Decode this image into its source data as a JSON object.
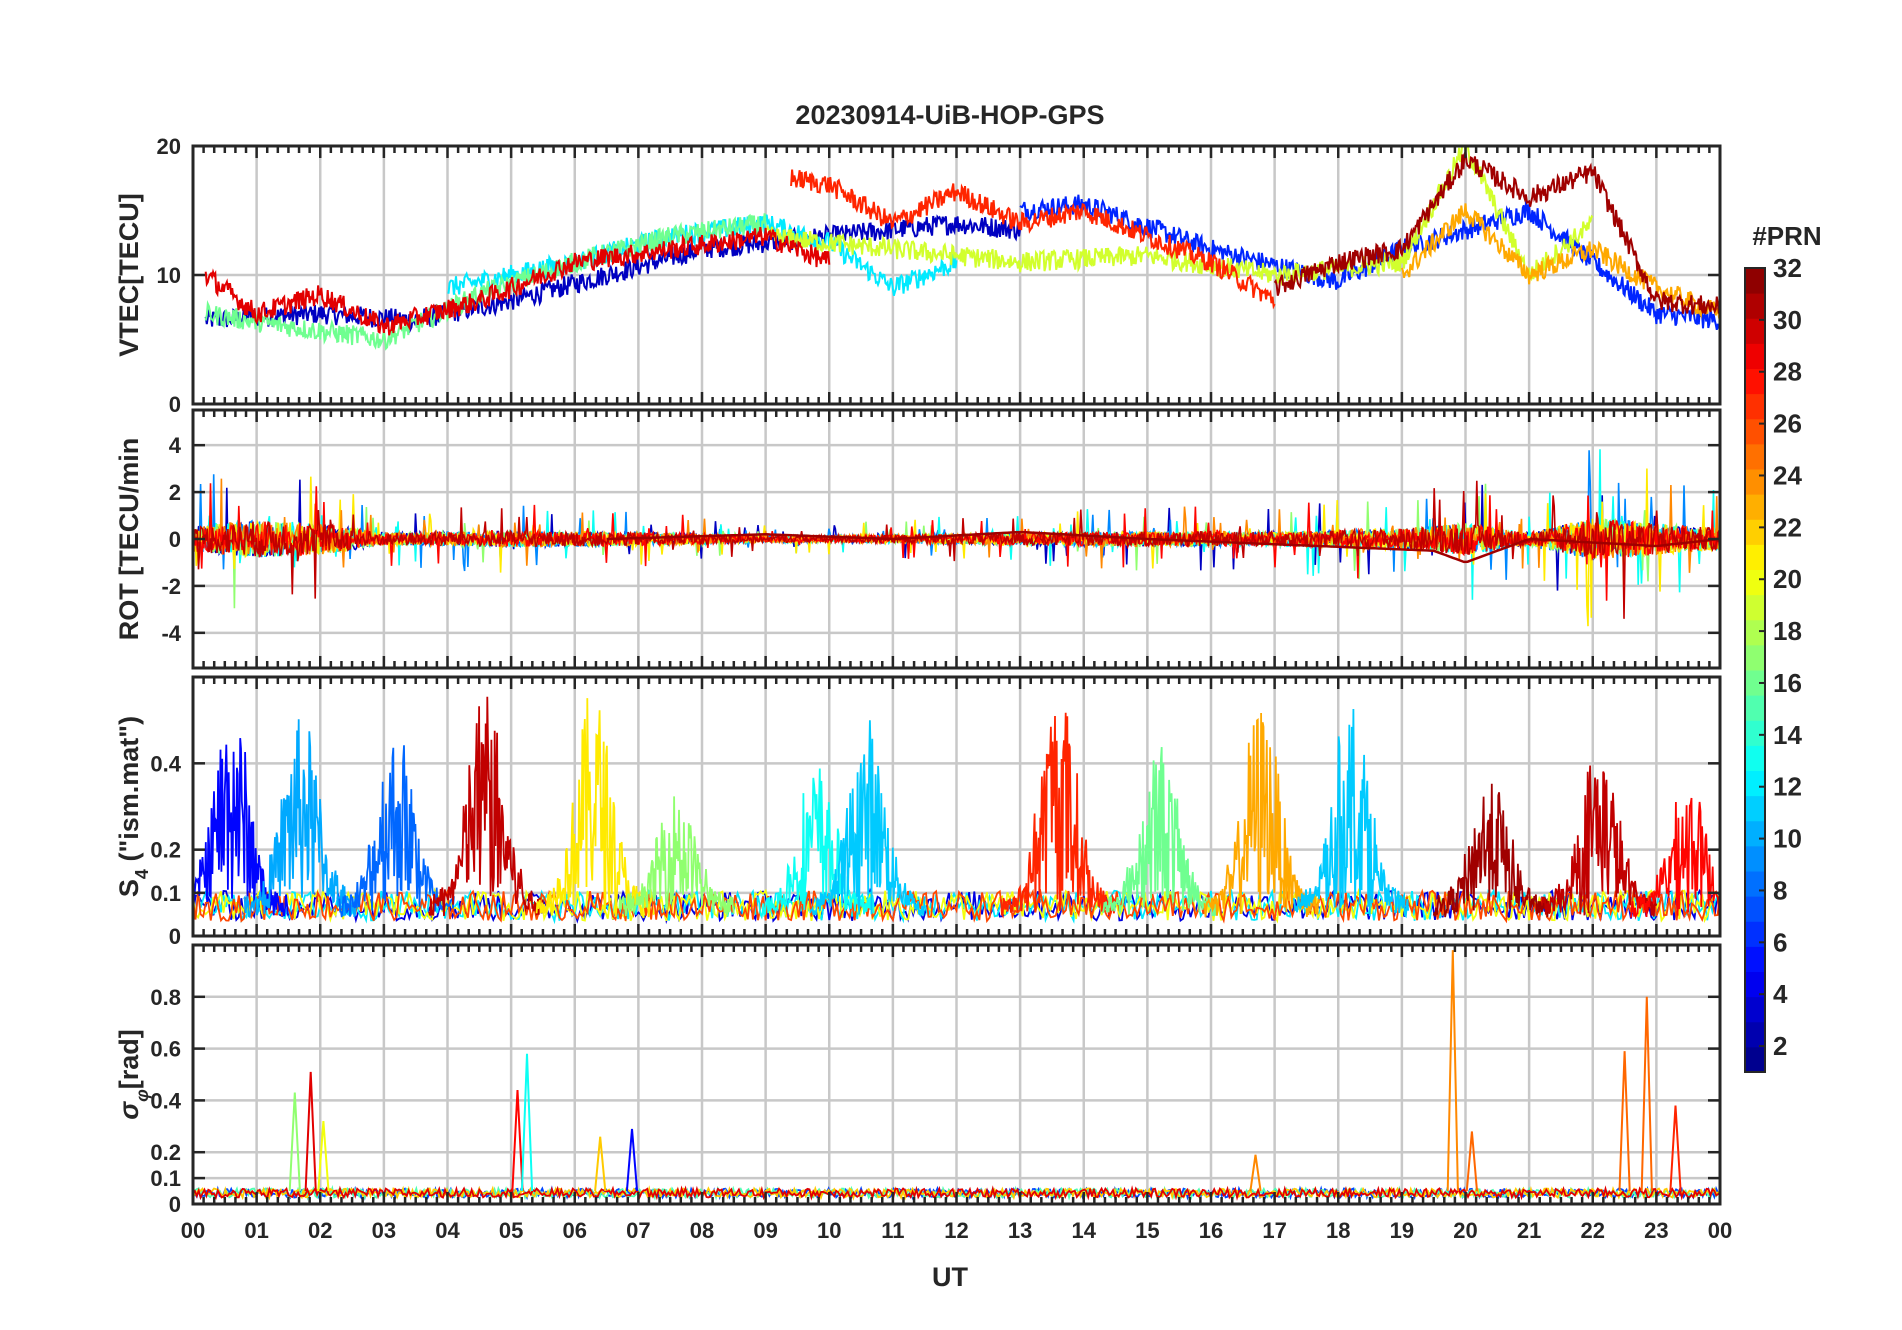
{
  "chart_data": {
    "type": "line",
    "title": "20230914-UiB-HOP-GPS",
    "xlabel": "UT",
    "x_tick_labels": [
      "00",
      "01",
      "02",
      "03",
      "04",
      "05",
      "06",
      "07",
      "08",
      "09",
      "10",
      "11",
      "12",
      "13",
      "14",
      "15",
      "16",
      "17",
      "18",
      "19",
      "20",
      "21",
      "22",
      "23",
      "00"
    ],
    "xlim_hours": [
      0,
      24
    ],
    "grid": true,
    "colorbar": {
      "title": "#PRN",
      "colormap": "jet",
      "range": [
        1,
        32
      ],
      "levels": 32,
      "tick_labels": [
        "2",
        "4",
        "6",
        "8",
        "10",
        "12",
        "14",
        "16",
        "18",
        "20",
        "22",
        "24",
        "26",
        "28",
        "30",
        "32"
      ]
    },
    "panels": [
      {
        "id": "vtec",
        "ylabel": "VTEC[TECU]",
        "ylim": [
          0,
          20
        ],
        "y_ticks": [
          0,
          10,
          20
        ],
        "y_tick_labels": [
          "0",
          "10",
          "20"
        ],
        "series": [
          {
            "prn": 3,
            "x": [
              0.2,
              2.0,
              3.5,
              5.0,
              6.5,
              8.0,
              10.0,
              12.0,
              13.0
            ],
            "y": [
              6.5,
              7.0,
              6.5,
              8.0,
              10.0,
              12.0,
              13.0,
              14.0,
              13.5
            ]
          },
          {
            "prn": 6,
            "x": [
              13.0,
              14.0,
              16.0,
              18.0,
              19.0,
              21.0,
              22.0,
              23.0,
              24.0
            ],
            "y": [
              15.0,
              15.5,
              12.0,
              9.5,
              12.0,
              15.0,
              11.0,
              7.0,
              6.5
            ]
          },
          {
            "prn": 12,
            "x": [
              4.0,
              6.0,
              7.5,
              9.0,
              10.0,
              11.0,
              12.0
            ],
            "y": [
              9.0,
              11.0,
              13.0,
              14.0,
              12.5,
              9.0,
              11.0
            ]
          },
          {
            "prn": 16,
            "x": [
              0.2,
              1.5,
              3.0,
              4.5,
              6.0,
              7.5,
              9.0
            ],
            "y": [
              7.0,
              6.0,
              5.0,
              8.5,
              11.0,
              13.0,
              14.0
            ]
          },
          {
            "prn": 19,
            "x": [
              9.0,
              11.0,
              13.0,
              15.0,
              17.0,
              19.0,
              20.0,
              21.0,
              22.0
            ],
            "y": [
              13.0,
              12.0,
              11.0,
              11.5,
              10.0,
              11.0,
              20.0,
              10.0,
              14.0
            ]
          },
          {
            "prn": 23,
            "x": [
              19.0,
              20.0,
              21.0,
              22.0,
              23.0,
              24.0
            ],
            "y": [
              10.0,
              15.0,
              10.0,
              12.0,
              9.0,
              7.0
            ]
          },
          {
            "prn": 27,
            "x": [
              9.4,
              10.0,
              11.0,
              12.0,
              13.0,
              14.0,
              15.0,
              16.0,
              17.0
            ],
            "y": [
              17.5,
              17.0,
              14.0,
              16.5,
              14.0,
              15.0,
              13.0,
              11.0,
              8.0
            ]
          },
          {
            "prn": 29,
            "x": [
              0.2,
              1.0,
              2.0,
              3.0,
              4.5,
              6.0,
              7.5,
              9.0,
              10.0
            ],
            "y": [
              10.0,
              7.0,
              8.5,
              6.0,
              8.0,
              11.0,
              12.0,
              13.0,
              11.0
            ]
          },
          {
            "prn": 31,
            "x": [
              17.0,
              18.0,
              19.0,
              20.0,
              21.0,
              22.0,
              23.0,
              24.0
            ],
            "y": [
              9.0,
              11.0,
              12.0,
              19.0,
              16.0,
              18.0,
              8.0,
              7.5
            ]
          }
        ]
      },
      {
        "id": "rot",
        "ylabel": "ROT [TECU/min",
        "ylim": [
          -5.5,
          5.5
        ],
        "y_ticks": [
          -4,
          -2,
          0,
          2,
          4
        ],
        "y_tick_labels": [
          "-4",
          "-2",
          "0",
          "2",
          "4"
        ],
        "envelope": {
          "hours": [
            0,
            1,
            2,
            3,
            5,
            7,
            9,
            11,
            13,
            15,
            17,
            19,
            20,
            21,
            22,
            23,
            24
          ],
          "amp": [
            2.5,
            3.5,
            3.0,
            1.2,
            1.5,
            1.3,
            0.6,
            0.8,
            1.2,
            1.4,
            1.4,
            2.0,
            3.0,
            1.2,
            4.0,
            3.0,
            2.0
          ]
        },
        "trend": {
          "prn": 31,
          "hours": [
            6.5,
            9.0,
            11.0,
            13.0,
            15.0,
            19.5,
            20.0,
            21.0,
            23.0,
            24.0
          ],
          "values": [
            0.0,
            0.2,
            0.0,
            0.3,
            0.0,
            -0.5,
            -1.0,
            0.0,
            -0.3,
            0.0
          ]
        }
      },
      {
        "id": "s4",
        "ylabel": "S4 (\"ism.mat\")",
        "ylabel_main": "S",
        "ylabel_sub": "4",
        "ylabel_rest": " (\"ism.mat\")",
        "ylim": [
          0,
          0.6
        ],
        "y_ticks": [
          0,
          0.1,
          0.2,
          0.4
        ],
        "y_tick_labels": [
          "0",
          "0.1",
          "0.2",
          "0.4"
        ],
        "baseline": 0.07,
        "bursts": [
          {
            "hour": 0.6,
            "peak": 0.55,
            "prn": 5
          },
          {
            "hour": 1.7,
            "peak": 0.52,
            "prn": 10
          },
          {
            "hour": 3.2,
            "peak": 0.5,
            "prn": 8
          },
          {
            "hour": 4.6,
            "peak": 0.58,
            "prn": 30
          },
          {
            "hour": 6.3,
            "peak": 0.58,
            "prn": 21
          },
          {
            "hour": 7.6,
            "peak": 0.35,
            "prn": 17
          },
          {
            "hour": 9.8,
            "peak": 0.4,
            "prn": 13
          },
          {
            "hour": 10.6,
            "peak": 0.5,
            "prn": 11
          },
          {
            "hour": 13.6,
            "peak": 0.58,
            "prn": 27
          },
          {
            "hour": 15.2,
            "peak": 0.45,
            "prn": 16
          },
          {
            "hour": 16.8,
            "peak": 0.55,
            "prn": 23
          },
          {
            "hour": 18.2,
            "peak": 0.55,
            "prn": 11
          },
          {
            "hour": 20.4,
            "peak": 0.38,
            "prn": 31
          },
          {
            "hour": 22.1,
            "peak": 0.45,
            "prn": 30
          },
          {
            "hour": 23.5,
            "peak": 0.35,
            "prn": 28
          }
        ]
      },
      {
        "id": "sigma",
        "ylabel": "σφ[rad]",
        "ylabel_main": "σ",
        "ylabel_sub": "φ",
        "ylabel_rest": "[rad]",
        "ylim": [
          0,
          1.0
        ],
        "y_ticks": [
          0,
          0.1,
          0.2,
          0.4,
          0.6,
          0.8
        ],
        "y_tick_labels": [
          "0",
          "0.1",
          "0.2",
          "0.4",
          "0.6",
          "0.8"
        ],
        "baseline": 0.05,
        "spikes": [
          {
            "hour": 1.6,
            "peak": 0.43,
            "prn": 17
          },
          {
            "hour": 1.85,
            "peak": 0.51,
            "prn": 29
          },
          {
            "hour": 2.05,
            "peak": 0.32,
            "prn": 20
          },
          {
            "hour": 5.1,
            "peak": 0.44,
            "prn": 28
          },
          {
            "hour": 5.25,
            "peak": 0.58,
            "prn": 13
          },
          {
            "hour": 6.4,
            "peak": 0.26,
            "prn": 22
          },
          {
            "hour": 6.9,
            "peak": 0.29,
            "prn": 5
          },
          {
            "hour": 16.7,
            "peak": 0.19,
            "prn": 24
          },
          {
            "hour": 19.8,
            "peak": 0.98,
            "prn": 24
          },
          {
            "hour": 20.1,
            "peak": 0.28,
            "prn": 25
          },
          {
            "hour": 22.5,
            "peak": 0.59,
            "prn": 25
          },
          {
            "hour": 22.85,
            "peak": 0.8,
            "prn": 25
          },
          {
            "hour": 23.3,
            "peak": 0.38,
            "prn": 27
          }
        ]
      }
    ]
  }
}
